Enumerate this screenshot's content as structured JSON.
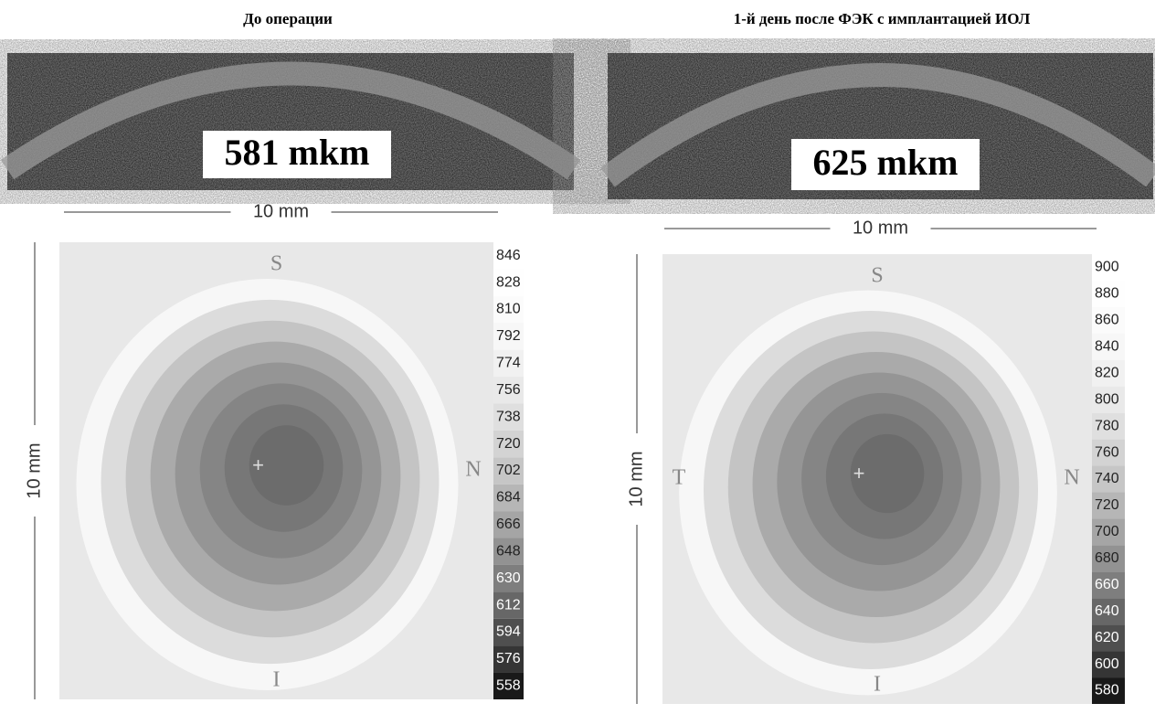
{
  "panels": [
    {
      "title": "До операции",
      "thickness": "581 mkm",
      "width_label": "10 mm",
      "height_label": "10 mm",
      "orientation": {
        "top": "S",
        "right": "N",
        "bottom": "I"
      },
      "scale": [
        846,
        828,
        810,
        792,
        774,
        756,
        738,
        720,
        702,
        684,
        666,
        648,
        630,
        612,
        594,
        576,
        558
      ]
    },
    {
      "title": "1-й день после ФЭК с имплантацией ИОЛ",
      "thickness": "625 mkm",
      "width_label": "10 mm",
      "height_label": "10 mm",
      "orientation": {
        "top": "S",
        "left": "T",
        "right": "N",
        "bottom": "I"
      },
      "scale": [
        900,
        880,
        860,
        840,
        820,
        800,
        780,
        760,
        740,
        720,
        700,
        680,
        660,
        640,
        620,
        600,
        580
      ]
    }
  ]
}
